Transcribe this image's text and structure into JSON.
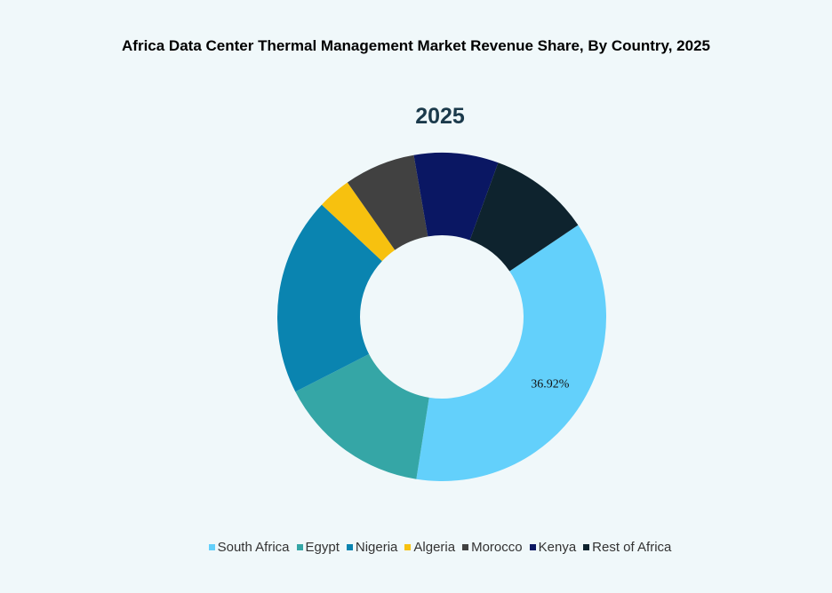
{
  "chart_data": {
    "type": "pie",
    "variant": "donut",
    "title": "Africa Data Center Thermal Management Market Revenue Share, By Country, 2025",
    "subtitle": "2025",
    "categories": [
      "South Africa",
      "Egypt",
      "Nigeria",
      "Algeria",
      "Morocco",
      "Kenya",
      "Rest of Africa"
    ],
    "values": [
      36.92,
      15.0,
      19.5,
      3.3,
      7.0,
      8.3,
      9.98
    ],
    "colors": [
      "#63d0fb",
      "#35a6a6",
      "#0a84b0",
      "#f7c10f",
      "#414141",
      "#0a1763",
      "#0e232e"
    ],
    "data_labels": [
      {
        "category": "South Africa",
        "text": "36.92%"
      }
    ],
    "legend": "bottom"
  }
}
